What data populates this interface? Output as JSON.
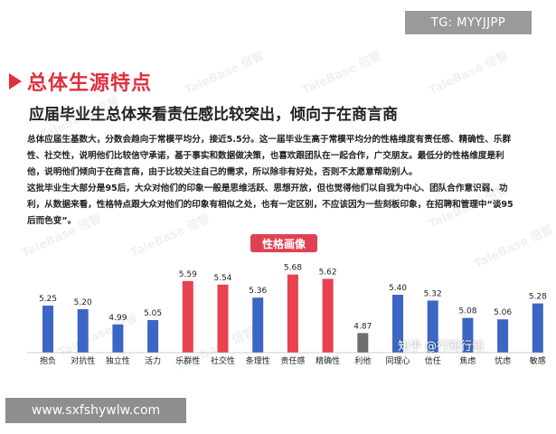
{
  "badge": "TG: MYYJJPP",
  "section_title": "总体生源特点",
  "subtitle": "应届毕业生总体来看责任感比较突出，倾向于在商言商",
  "paragraphs": [
    "总体应届生基数大，分数会趋向于常模平均分，接近5.5分。这一届毕业生高于常模平均分的性格维度有责任感、精确性、乐群性、社交性，说明他们比较信守承诺，基于事实和数据做决策，也喜欢跟团队在一起合作，广交朋友。最低分的性格维度是利他，说明他们倾向于在商言商，由于比较关注自己的需求，所以除非有好处，否则不太愿意帮助别人。",
    "这批毕业生大部分是95后，大众对他们的印象一般是思维活跃、思想开放，但也觉得他们以自我为中心、团队合作意识弱、功利，从数据来看，性格特点跟大众对他们的印象有相似之处，也有一定区别，不应该因为一些刻板印象，在招聘和管理中“谈95后而色变”。"
  ],
  "watermark": "TaleBase 倍智",
  "zhihu_mark": "知乎 @行知行知",
  "site": "www.sxfshywlw.com",
  "colors": {
    "blue": "#3b66c4",
    "red": "#e8414f",
    "gray": "#6e6e6e",
    "accent": "#e0303f"
  },
  "chart_data": {
    "type": "bar",
    "title": "性格画像",
    "categories": [
      "抱负",
      "对抗性",
      "独立性",
      "活力",
      "乐群性",
      "社交性",
      "条理性",
      "责任感",
      "精确性",
      "利他",
      "同理心",
      "信任",
      "焦虑",
      "忧虑",
      "敏感"
    ],
    "values": [
      5.25,
      5.2,
      4.99,
      5.05,
      5.59,
      5.54,
      5.36,
      5.68,
      5.62,
      4.87,
      5.4,
      5.32,
      5.08,
      5.06,
      5.28
    ],
    "value_labels": [
      "5.25",
      "5.20",
      "4.99",
      "5.05",
      "5.59",
      "5.54",
      "5.36",
      "5.68",
      "5.62",
      "4.87",
      "5.40",
      "5.32",
      "5.08",
      "5.06",
      "5.28"
    ],
    "bar_colors": [
      "blue",
      "blue",
      "blue",
      "blue",
      "red",
      "red",
      "blue",
      "red",
      "red",
      "gray",
      "blue",
      "blue",
      "blue",
      "blue",
      "blue"
    ],
    "ylim": [
      4.6,
      5.75
    ],
    "grid": false,
    "legend": "none"
  }
}
